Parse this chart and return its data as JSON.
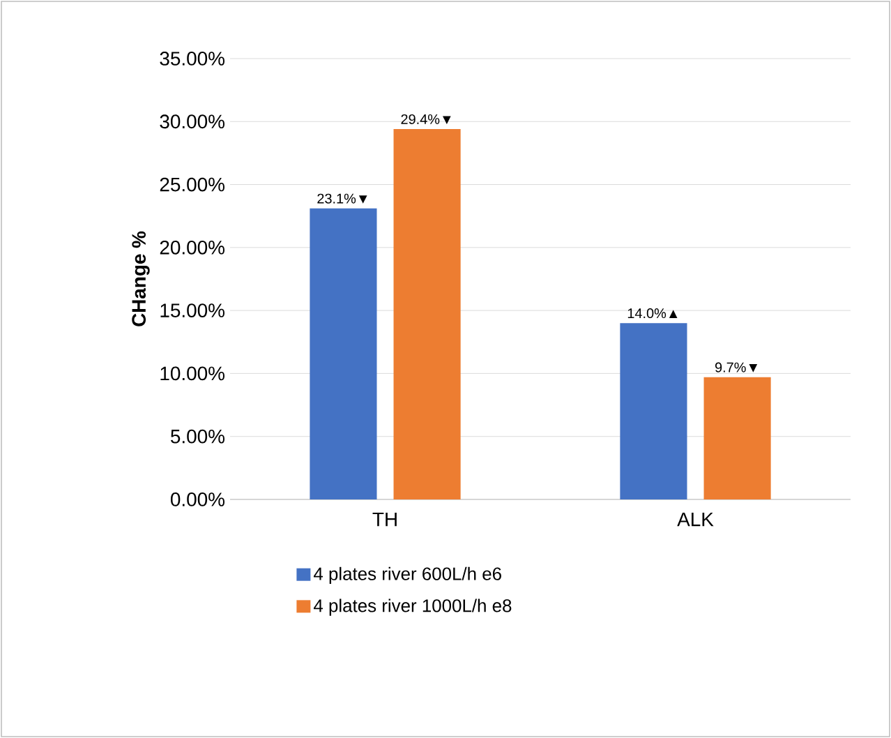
{
  "chart_data": {
    "type": "bar",
    "ylabel": "CHange %",
    "categories": [
      "TH",
      "ALK"
    ],
    "series": [
      {
        "name": "4 plates river 600L/h e6",
        "color": "#4472c4",
        "values": [
          23.1,
          14.0
        ],
        "value_labels": [
          "23.1%▼",
          "14.0%▲"
        ]
      },
      {
        "name": "4 plates river 1000L/h e8",
        "color": "#ed7d31",
        "values": [
          29.4,
          9.7
        ],
        "value_labels": [
          "29.4%▼",
          "9.7%▼"
        ]
      }
    ],
    "ylim": [
      0,
      35
    ],
    "yticks": [
      {
        "value": 0,
        "label": "0.00%"
      },
      {
        "value": 5,
        "label": "5.00%"
      },
      {
        "value": 10,
        "label": "10.00%"
      },
      {
        "value": 15,
        "label": "15.00%"
      },
      {
        "value": 20,
        "label": "20.00%"
      },
      {
        "value": 25,
        "label": "25.00%"
      },
      {
        "value": 30,
        "label": "30.00%"
      },
      {
        "value": 35,
        "label": "35.00%"
      }
    ],
    "grid": "y",
    "legend": "bottom"
  }
}
